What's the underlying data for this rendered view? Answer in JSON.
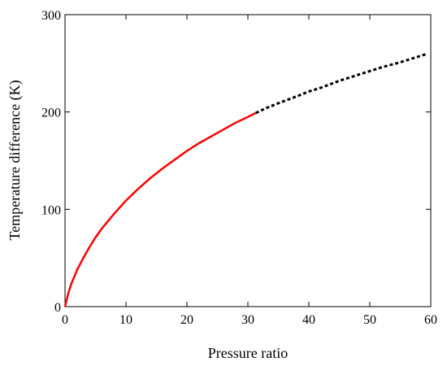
{
  "chart_data": {
    "type": "line",
    "title": "",
    "xlabel": "Pressure ratio",
    "ylabel": "Temperature difference (K)",
    "xlim": [
      0,
      60
    ],
    "ylim": [
      0,
      300
    ],
    "x_ticks": [
      0,
      10,
      20,
      30,
      40,
      50,
      60
    ],
    "y_ticks": [
      0,
      100,
      200,
      300
    ],
    "grid": false,
    "legend": "none",
    "series": [
      {
        "style": "solid",
        "color": "#ff0000",
        "x": [
          0,
          0.5,
          1,
          2,
          3,
          4,
          5,
          6,
          8,
          10,
          12,
          14,
          16,
          18,
          20,
          22,
          24,
          26,
          28,
          30,
          31.3
        ],
        "y": [
          0,
          13,
          23,
          38,
          50,
          61,
          71,
          80,
          95,
          109,
          121,
          132,
          142,
          151,
          160,
          168,
          175,
          182,
          189,
          195,
          199
        ]
      },
      {
        "style": "dashed",
        "color": "#000000",
        "x": [
          31.3,
          33,
          35,
          38,
          40,
          42,
          45,
          48,
          50,
          52,
          55,
          58,
          59.5
        ],
        "y": [
          199,
          204,
          209,
          216,
          221,
          225,
          232,
          238,
          242,
          246,
          251,
          257,
          260
        ]
      }
    ]
  }
}
